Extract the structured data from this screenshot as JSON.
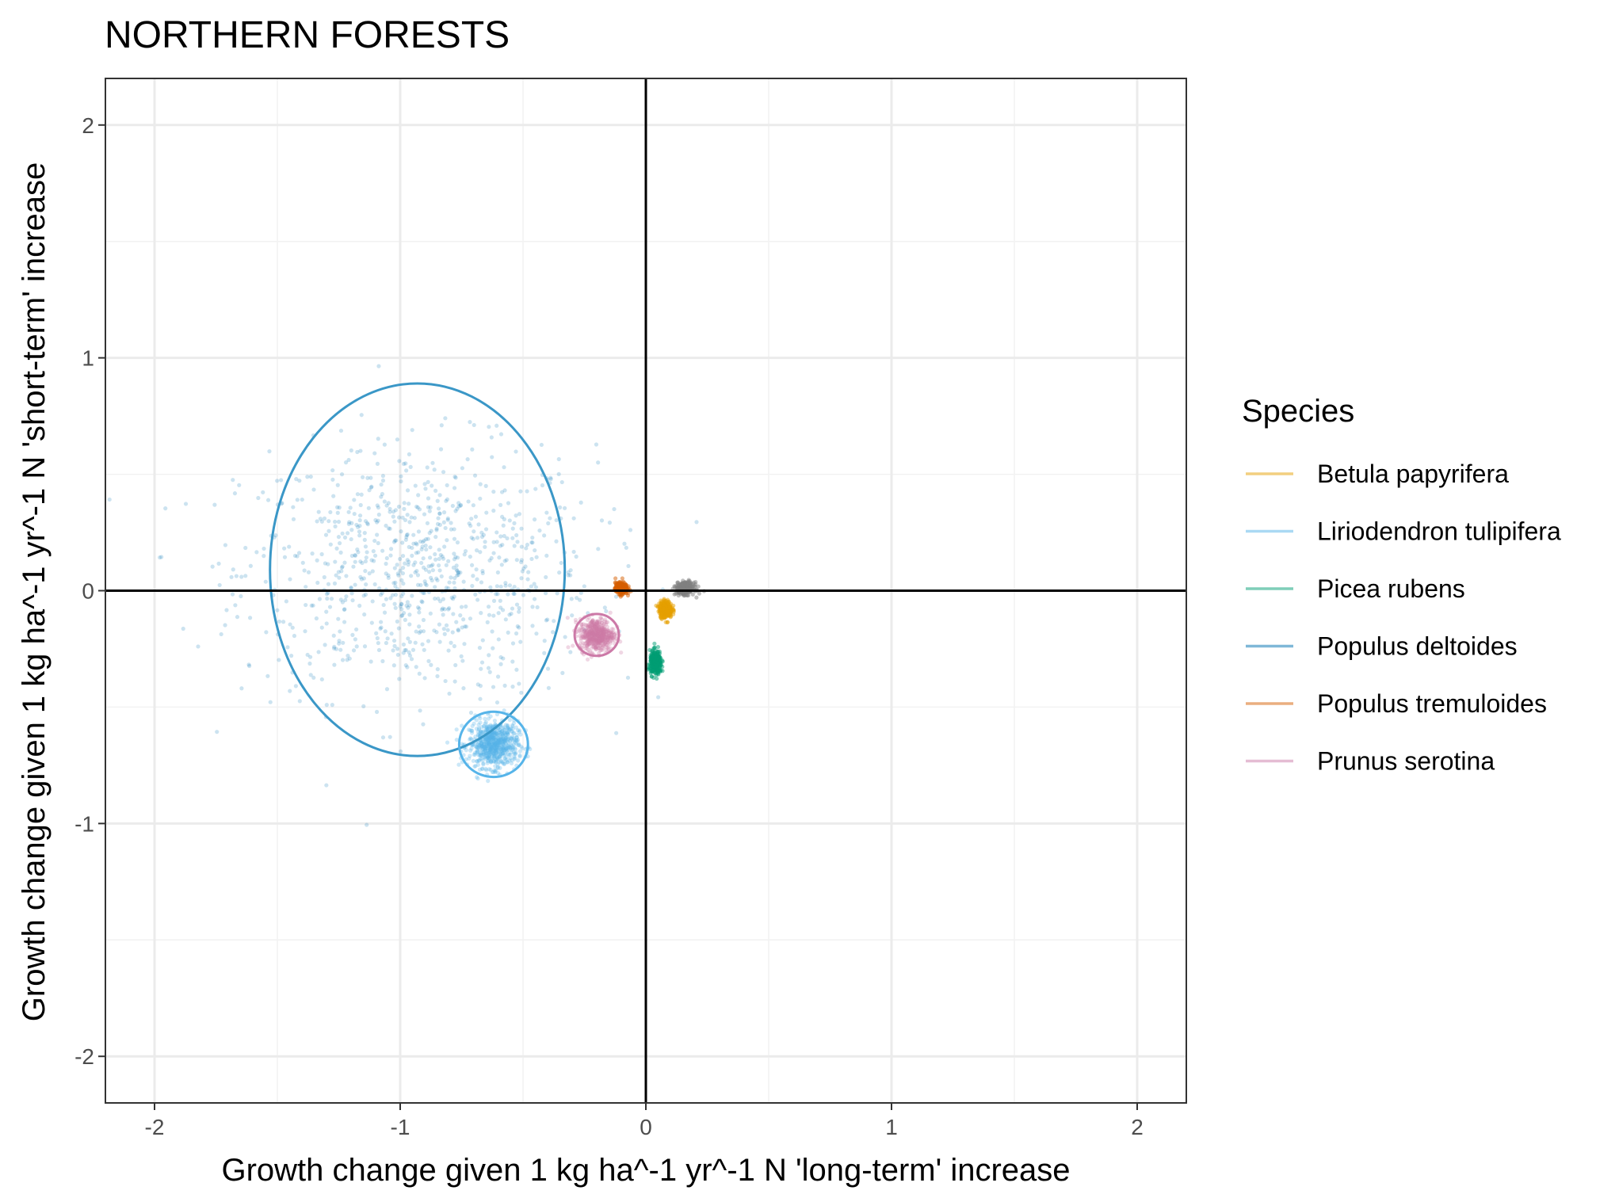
{
  "chart_data": {
    "type": "scatter",
    "title": "NORTHERN FORESTS",
    "xlabel": "Growth change given 1 kg ha^-1 yr^-1 N 'long-term' increase",
    "ylabel": "Growth change given 1 kg ha^-1 yr^-1 N 'short-term' increase",
    "xlim": [
      -2.2,
      2.2
    ],
    "ylim": [
      -2.2,
      2.2
    ],
    "x_ticks": [
      -2,
      -1,
      0,
      1,
      2
    ],
    "y_ticks": [
      -2,
      -1,
      0,
      1,
      2
    ],
    "x_tick_labels": [
      "-2",
      "-1",
      "0",
      "1",
      "2"
    ],
    "y_tick_labels": [
      "-2",
      "-1",
      "0",
      "1",
      "2"
    ],
    "grid": true,
    "reference_lines": {
      "x": 0,
      "y": 0
    },
    "legend": {
      "title": "Species",
      "position": "right",
      "entries": [
        {
          "label": "Betula papyrifera",
          "color": "#E69F00"
        },
        {
          "label": "Liriodendron tulipifera",
          "color": "#56B4E9"
        },
        {
          "label": "Picea rubens",
          "color": "#009E73"
        },
        {
          "label": "Populus deltoides",
          "color": "#0072B2"
        },
        {
          "label": "Populus tremuloides",
          "color": "#D55E00"
        },
        {
          "label": "Prunus serotina",
          "color": "#CC79A7"
        }
      ]
    },
    "series": [
      {
        "name": "Populus deltoides",
        "color": "#0072B2",
        "center": [
          -0.93,
          0.08
        ],
        "spread": [
          0.36,
          0.27
        ],
        "n": 900,
        "point_alpha": 0.2,
        "ellipse": {
          "center": [
            -0.93,
            0.09
          ],
          "radii": [
            0.6,
            0.8
          ],
          "color": "#3a97c7"
        }
      },
      {
        "name": "Liriodendron tulipifera",
        "color": "#56B4E9",
        "center": [
          -0.62,
          -0.66
        ],
        "spread": [
          0.05,
          0.05
        ],
        "n": 700,
        "point_alpha": 0.3,
        "ellipse": {
          "center": [
            -0.62,
            -0.66
          ],
          "radii": [
            0.14,
            0.14
          ],
          "color": "#56B4E9"
        }
      },
      {
        "name": "Prunus serotina",
        "color": "#CC79A7",
        "center": [
          -0.2,
          -0.19
        ],
        "spread": [
          0.035,
          0.035
        ],
        "n": 500,
        "point_alpha": 0.3,
        "ellipse": {
          "center": [
            -0.2,
            -0.19
          ],
          "radii": [
            0.09,
            0.09
          ],
          "color": "#CC79A7"
        }
      },
      {
        "name": "Populus tremuloides",
        "color": "#D55E00",
        "center": [
          -0.1,
          0.01
        ],
        "spread": [
          0.012,
          0.012
        ],
        "n": 300,
        "point_alpha": 0.5
      },
      {
        "name": "Betula papyrifera",
        "color": "#E69F00",
        "center": [
          0.08,
          -0.08
        ],
        "spread": [
          0.013,
          0.018
        ],
        "n": 300,
        "point_alpha": 0.5
      },
      {
        "name": "Picea rubens",
        "color": "#009E73",
        "center": [
          0.04,
          -0.31
        ],
        "spread": [
          0.012,
          0.025
        ],
        "n": 300,
        "point_alpha": 0.5
      },
      {
        "name": "",
        "color": "#808080",
        "center": [
          0.16,
          0.01
        ],
        "spread": [
          0.018,
          0.013
        ],
        "n": 300,
        "point_alpha": 0.5
      }
    ]
  }
}
